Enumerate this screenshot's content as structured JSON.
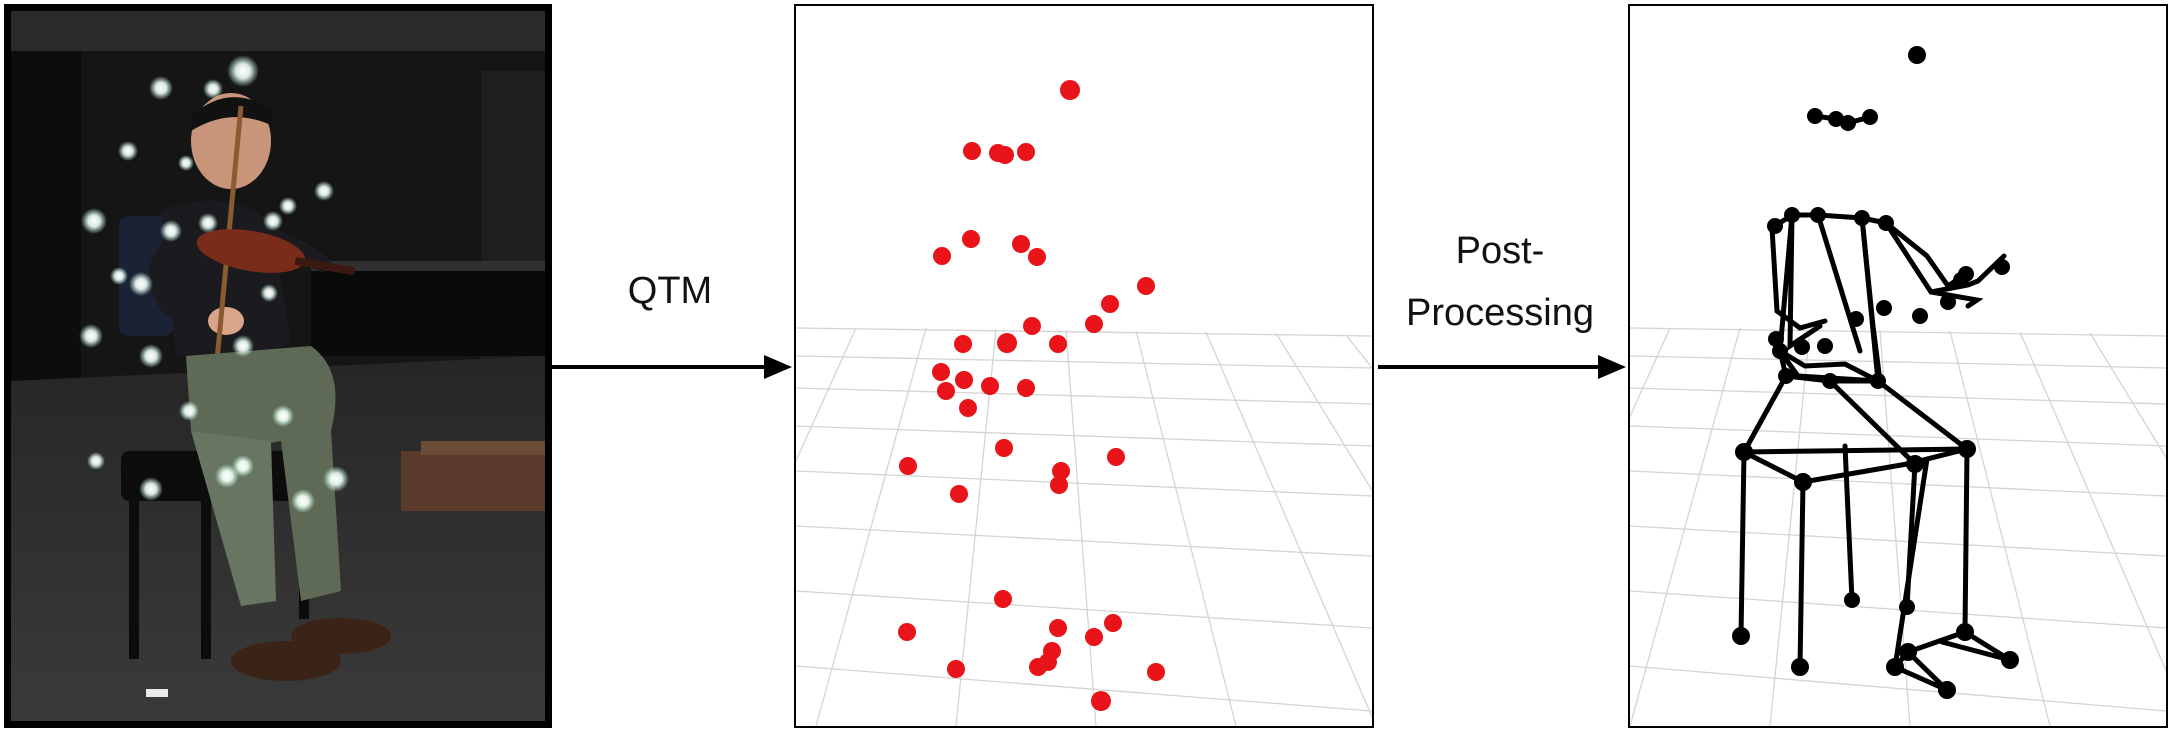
{
  "labels": {
    "step1": "QTM",
    "step2_line1": "Post-",
    "step2_line2": "Processing"
  },
  "colors": {
    "marker_red": "#e8141a",
    "skeleton_black": "#000000",
    "grid_gray": "#d4d4d4",
    "photo_marker": "#ffffff"
  },
  "panels": [
    "photo-of-violinist-with-motion-capture-markers",
    "3d-marker-point-cloud",
    "3d-skeleton-model"
  ]
}
